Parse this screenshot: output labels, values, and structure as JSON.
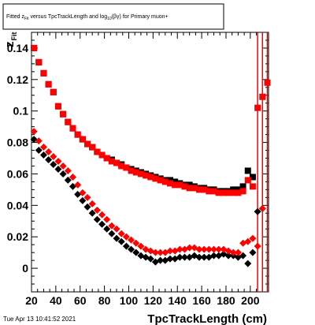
{
  "title": {
    "part1": "Fitted  z",
    "sub1": "Fit",
    "part2": " versus TpcTrackLength and log",
    "sub2": "10",
    "part3": "(βγ) for Primary muon+"
  },
  "date_stamp": "Tue Apr 13 10:41:52 2021",
  "colors": {
    "black_series": "#000000",
    "red_series": "#ff0000",
    "background": "#ffffff"
  },
  "chart_data": {
    "type": "scatter",
    "xlabel": "TpcTrackLength (cm)",
    "ylabel": "z",
    "ylabel_sub": "Fit",
    "xlim": [
      20,
      215
    ],
    "ylim": [
      -0.015,
      0.15
    ],
    "x_ticks": [
      20,
      40,
      60,
      80,
      100,
      120,
      140,
      160,
      180,
      200
    ],
    "y_ticks": [
      0,
      0.02,
      0.04,
      0.06,
      0.08,
      0.1,
      0.12,
      0.14
    ],
    "y_tick_labels": [
      "0",
      "0.02",
      "0.04",
      "0.06",
      "0.08",
      "0.1",
      "0.12",
      "0.14"
    ],
    "series": [
      {
        "marker": "square",
        "color": "#000000",
        "points": [
          [
            22,
            0.14
          ],
          [
            26,
            0.131
          ],
          [
            30,
            0.124
          ],
          [
            34,
            0.117
          ],
          [
            38,
            0.112
          ],
          [
            42,
            0.103
          ],
          [
            46,
            0.098
          ],
          [
            50,
            0.093
          ],
          [
            54,
            0.089
          ],
          [
            58,
            0.085
          ],
          [
            62,
            0.082
          ],
          [
            66,
            0.079
          ],
          [
            70,
            0.077
          ],
          [
            74,
            0.074
          ],
          [
            78,
            0.072
          ],
          [
            82,
            0.07
          ],
          [
            86,
            0.069
          ],
          [
            90,
            0.067
          ],
          [
            94,
            0.066
          ],
          [
            98,
            0.064
          ],
          [
            102,
            0.063
          ],
          [
            106,
            0.062
          ],
          [
            110,
            0.061
          ],
          [
            114,
            0.06
          ],
          [
            118,
            0.059
          ],
          [
            122,
            0.058
          ],
          [
            126,
            0.057
          ],
          [
            130,
            0.056
          ],
          [
            134,
            0.056
          ],
          [
            138,
            0.055
          ],
          [
            142,
            0.054
          ],
          [
            146,
            0.053
          ],
          [
            150,
            0.053
          ],
          [
            154,
            0.052
          ],
          [
            158,
            0.051
          ],
          [
            162,
            0.051
          ],
          [
            166,
            0.05
          ],
          [
            170,
            0.05
          ],
          [
            174,
            0.049
          ],
          [
            178,
            0.049
          ],
          [
            182,
            0.049
          ],
          [
            186,
            0.05
          ],
          [
            190,
            0.05
          ],
          [
            194,
            0.052
          ],
          [
            198,
            0.062
          ],
          [
            202,
            0.058
          ]
        ]
      },
      {
        "marker": "square",
        "color": "#ff0000",
        "points": [
          [
            22,
            0.14
          ],
          [
            26,
            0.131
          ],
          [
            30,
            0.124
          ],
          [
            34,
            0.117
          ],
          [
            38,
            0.112
          ],
          [
            42,
            0.103
          ],
          [
            46,
            0.098
          ],
          [
            50,
            0.093
          ],
          [
            54,
            0.089
          ],
          [
            58,
            0.085
          ],
          [
            62,
            0.082
          ],
          [
            66,
            0.079
          ],
          [
            70,
            0.077
          ],
          [
            74,
            0.074
          ],
          [
            78,
            0.072
          ],
          [
            82,
            0.07
          ],
          [
            86,
            0.068
          ],
          [
            90,
            0.067
          ],
          [
            94,
            0.065
          ],
          [
            98,
            0.064
          ],
          [
            102,
            0.062
          ],
          [
            106,
            0.061
          ],
          [
            110,
            0.06
          ],
          [
            114,
            0.059
          ],
          [
            118,
            0.058
          ],
          [
            122,
            0.057
          ],
          [
            126,
            0.056
          ],
          [
            130,
            0.055
          ],
          [
            134,
            0.054
          ],
          [
            138,
            0.053
          ],
          [
            142,
            0.053
          ],
          [
            146,
            0.052
          ],
          [
            150,
            0.051
          ],
          [
            154,
            0.051
          ],
          [
            158,
            0.05
          ],
          [
            162,
            0.05
          ],
          [
            166,
            0.049
          ],
          [
            170,
            0.049
          ],
          [
            174,
            0.048
          ],
          [
            178,
            0.048
          ],
          [
            182,
            0.048
          ],
          [
            186,
            0.048
          ],
          [
            190,
            0.048
          ],
          [
            194,
            0.049
          ],
          [
            198,
            0.056
          ],
          [
            202,
            0.052
          ],
          [
            206,
            0.102
          ],
          [
            210,
            0.109
          ],
          [
            214,
            0.118
          ]
        ]
      },
      {
        "marker": "diamond",
        "color": "#000000",
        "points": [
          [
            22,
            0.082
          ],
          [
            26,
            0.075
          ],
          [
            30,
            0.072
          ],
          [
            34,
            0.069
          ],
          [
            38,
            0.066
          ],
          [
            42,
            0.063
          ],
          [
            46,
            0.06
          ],
          [
            50,
            0.056
          ],
          [
            54,
            0.052
          ],
          [
            58,
            0.047
          ],
          [
            62,
            0.043
          ],
          [
            66,
            0.039
          ],
          [
            70,
            0.035
          ],
          [
            74,
            0.031
          ],
          [
            78,
            0.028
          ],
          [
            82,
            0.025
          ],
          [
            86,
            0.022
          ],
          [
            90,
            0.019
          ],
          [
            94,
            0.017
          ],
          [
            98,
            0.014
          ],
          [
            102,
            0.012
          ],
          [
            106,
            0.01
          ],
          [
            110,
            0.008
          ],
          [
            114,
            0.007
          ],
          [
            118,
            0.006
          ],
          [
            122,
            0.004
          ],
          [
            126,
            0.005
          ],
          [
            130,
            0.005
          ],
          [
            134,
            0.006
          ],
          [
            138,
            0.006
          ],
          [
            142,
            0.007
          ],
          [
            146,
            0.007
          ],
          [
            150,
            0.007
          ],
          [
            154,
            0.008
          ],
          [
            158,
            0.007
          ],
          [
            162,
            0.007
          ],
          [
            166,
            0.007
          ],
          [
            170,
            0.008
          ],
          [
            174,
            0.008
          ],
          [
            178,
            0.009
          ],
          [
            182,
            0.008
          ],
          [
            186,
            0.008
          ],
          [
            190,
            0.007
          ],
          [
            194,
            0.008
          ],
          [
            198,
            0.003
          ],
          [
            202,
            0.01
          ],
          [
            206,
            0.036
          ],
          [
            210,
            0.038
          ]
        ]
      },
      {
        "marker": "diamond",
        "color": "#ff0000",
        "points": [
          [
            22,
            0.087
          ],
          [
            26,
            0.081
          ],
          [
            30,
            0.077
          ],
          [
            34,
            0.074
          ],
          [
            38,
            0.071
          ],
          [
            42,
            0.068
          ],
          [
            46,
            0.065
          ],
          [
            50,
            0.062
          ],
          [
            54,
            0.058
          ],
          [
            58,
            0.053
          ],
          [
            62,
            0.048
          ],
          [
            66,
            0.045
          ],
          [
            70,
            0.041
          ],
          [
            74,
            0.037
          ],
          [
            78,
            0.034
          ],
          [
            82,
            0.031
          ],
          [
            86,
            0.027
          ],
          [
            90,
            0.025
          ],
          [
            94,
            0.022
          ],
          [
            98,
            0.02
          ],
          [
            102,
            0.018
          ],
          [
            106,
            0.016
          ],
          [
            110,
            0.014
          ],
          [
            114,
            0.012
          ],
          [
            118,
            0.011
          ],
          [
            122,
            0.01
          ],
          [
            126,
            0.01
          ],
          [
            130,
            0.01
          ],
          [
            134,
            0.011
          ],
          [
            138,
            0.011
          ],
          [
            142,
            0.012
          ],
          [
            146,
            0.012
          ],
          [
            150,
            0.013
          ],
          [
            154,
            0.013
          ],
          [
            158,
            0.012
          ],
          [
            162,
            0.012
          ],
          [
            166,
            0.012
          ],
          [
            170,
            0.012
          ],
          [
            174,
            0.012
          ],
          [
            178,
            0.012
          ],
          [
            182,
            0.011
          ],
          [
            186,
            0.01
          ],
          [
            190,
            0.01
          ],
          [
            194,
            0.016
          ],
          [
            198,
            0.017
          ],
          [
            202,
            0.019
          ],
          [
            206,
            0.014
          ],
          [
            210,
            0.038
          ]
        ]
      }
    ],
    "error_bars": [
      {
        "x": 206,
        "y_low": -0.015,
        "y_high": 0.15,
        "color": "#ff0000"
      },
      {
        "x": 210,
        "y_low": -0.015,
        "y_high": 0.15,
        "color": "#ff0000"
      },
      {
        "x": 214,
        "y_low": -0.015,
        "y_high": 0.15,
        "color": "#ff0000"
      }
    ]
  }
}
